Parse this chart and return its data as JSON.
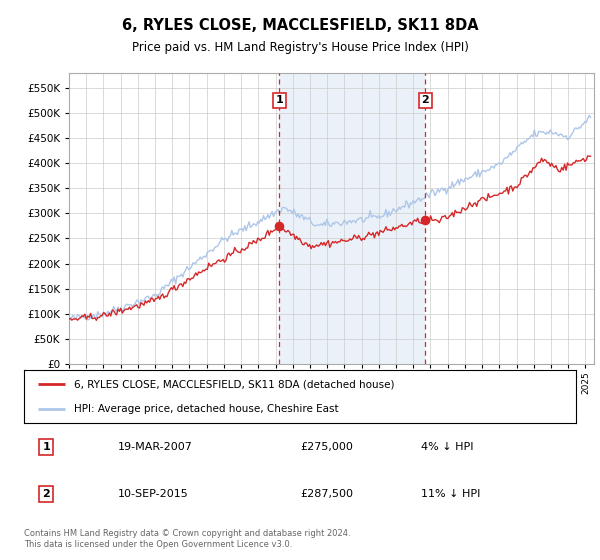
{
  "title": "6, RYLES CLOSE, MACCLESFIELD, SK11 8DA",
  "subtitle": "Price paid vs. HM Land Registry's House Price Index (HPI)",
  "ylabel_values": [
    0,
    50000,
    100000,
    150000,
    200000,
    250000,
    300000,
    350000,
    400000,
    450000,
    500000,
    550000
  ],
  "ylim": [
    0,
    580000
  ],
  "xlim_start": 1995.0,
  "xlim_end": 2025.5,
  "annotation1": {
    "label": "1",
    "date": "19-MAR-2007",
    "price": "£275,000",
    "pct": "4% ↓ HPI",
    "x": 2007.21
  },
  "annotation2": {
    "label": "2",
    "date": "10-SEP-2015",
    "price": "£287,500",
    "pct": "11% ↓ HPI",
    "x": 2015.71
  },
  "hpi_color": "#aec6e8",
  "price_color": "#d62728",
  "legend_label1": "6, RYLES CLOSE, MACCLESFIELD, SK11 8DA (detached house)",
  "legend_label2": "HPI: Average price, detached house, Cheshire East",
  "footer": "Contains HM Land Registry data © Crown copyright and database right 2024.\nThis data is licensed under the Open Government Licence v3.0.",
  "background_color": "#dce9f5",
  "plot_bg": "#ffffff",
  "grid_color": "#cccccc",
  "annotation_box_color": "#d62728"
}
